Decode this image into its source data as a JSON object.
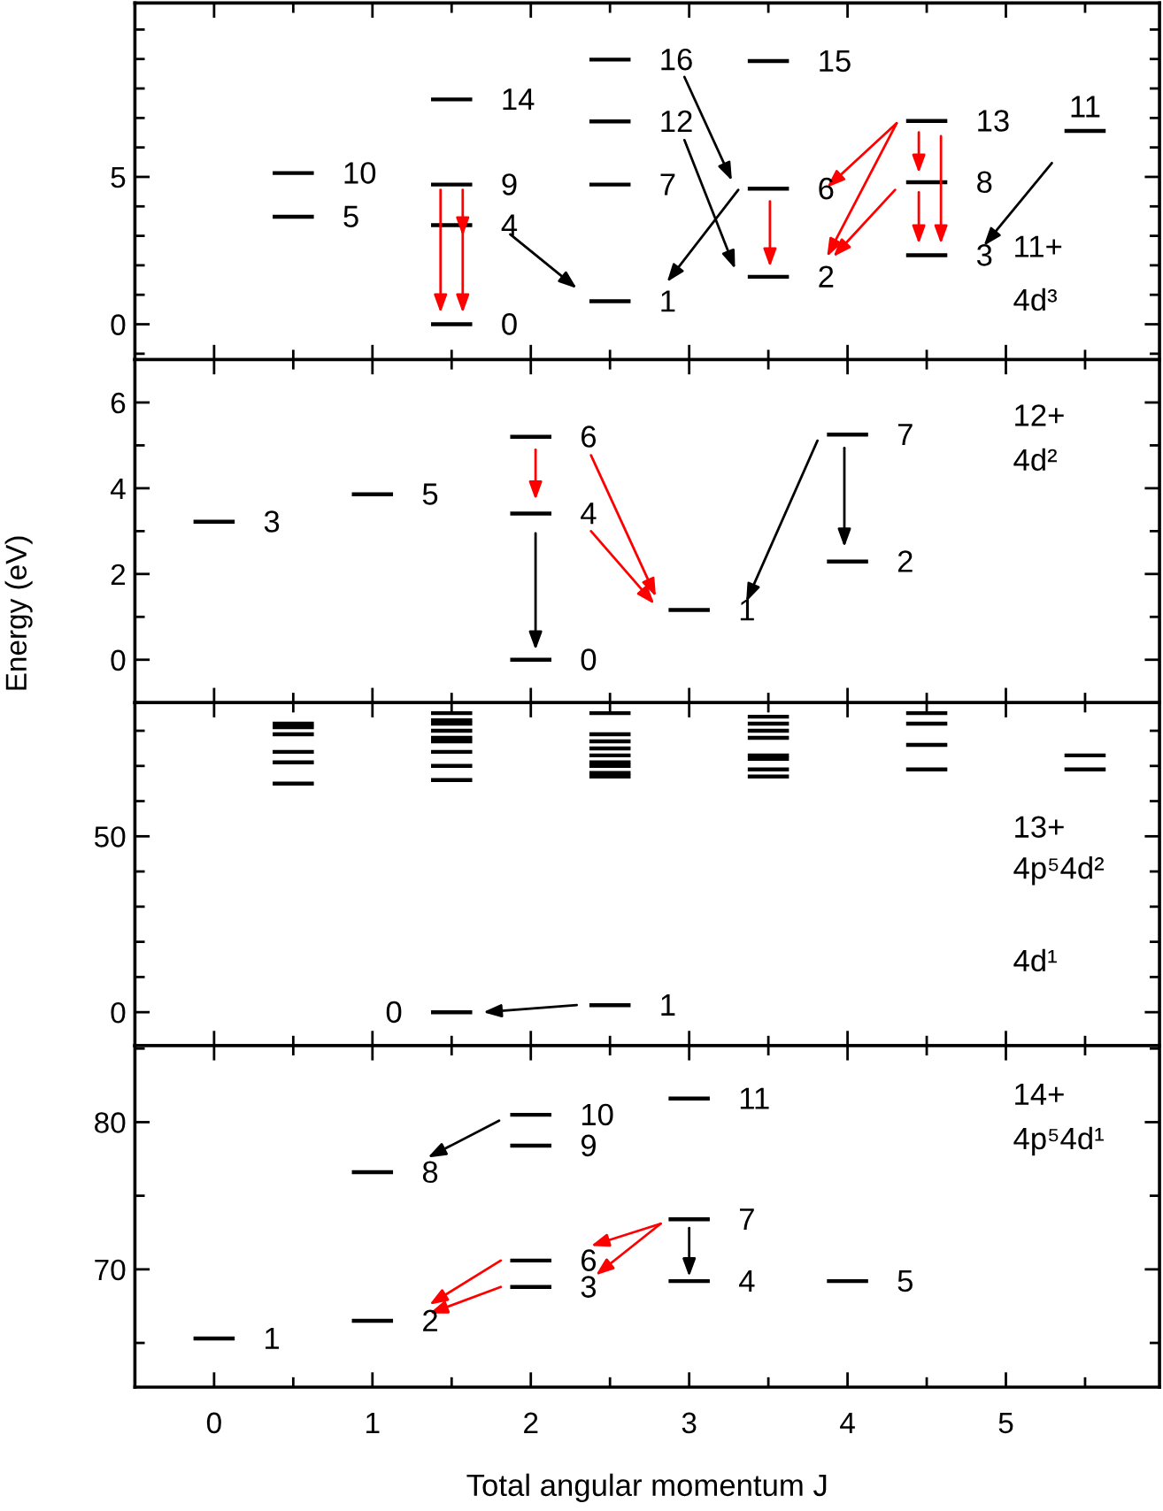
{
  "chart_data": [
    {
      "type": "line",
      "xlim": [
        -0.5,
        5.97
      ],
      "xticks": [
        0,
        1,
        2,
        3,
        4,
        5
      ],
      "ylim": [
        -1.2,
        10.9
      ],
      "yticks": [
        0,
        5
      ],
      "tick_labels": "y",
      "series": [
        {
          "color": "#000000",
          "x": [
            0.37,
            0.63
          ],
          "values": [
            5.13,
            5.13
          ]
        },
        {
          "color": "#000000",
          "x": [
            0.37,
            0.63
          ],
          "values": [
            3.65,
            3.65
          ]
        },
        {
          "color": "#000000",
          "x": [
            1.37,
            1.63
          ],
          "values": [
            7.63,
            7.63
          ]
        },
        {
          "color": "#000000",
          "x": [
            1.37,
            1.63
          ],
          "values": [
            4.74,
            4.74
          ]
        },
        {
          "color": "#000000",
          "x": [
            1.37,
            1.63
          ],
          "values": [
            3.36,
            3.36
          ]
        },
        {
          "color": "#000000",
          "x": [
            1.37,
            1.63
          ],
          "values": [
            0,
            0
          ]
        },
        {
          "color": "#000000",
          "x": [
            2.37,
            2.63
          ],
          "values": [
            8.98,
            8.98
          ]
        },
        {
          "color": "#000000",
          "x": [
            2.37,
            2.63
          ],
          "values": [
            6.88,
            6.88
          ]
        },
        {
          "color": "#000000",
          "x": [
            2.37,
            2.63
          ],
          "values": [
            4.74,
            4.74
          ]
        },
        {
          "color": "#000000",
          "x": [
            2.37,
            2.63
          ],
          "values": [
            0.78,
            0.78
          ]
        },
        {
          "color": "#000000",
          "x": [
            3.37,
            3.63
          ],
          "values": [
            8.93,
            8.93
          ]
        },
        {
          "color": "#000000",
          "x": [
            3.37,
            3.63
          ],
          "values": [
            4.6,
            4.6
          ]
        },
        {
          "color": "#000000",
          "x": [
            3.37,
            3.63
          ],
          "values": [
            1.61,
            1.61
          ]
        },
        {
          "color": "#000000",
          "x": [
            4.37,
            4.63
          ],
          "values": [
            6.9,
            6.9
          ]
        },
        {
          "color": "#000000",
          "x": [
            4.37,
            4.63
          ],
          "values": [
            4.82,
            4.82
          ]
        },
        {
          "color": "#000000",
          "x": [
            4.37,
            4.63
          ],
          "values": [
            2.34,
            2.34
          ]
        },
        {
          "color": "#000000",
          "x": [
            5.37,
            5.63
          ],
          "values": [
            6.56,
            6.56
          ]
        }
      ],
      "annotations": [
        {
          "text": "10",
          "x": 0.5,
          "y": 5.13
        },
        {
          "text": "5",
          "x": 0.5,
          "y": 3.65
        },
        {
          "text": "14",
          "x": 1.5,
          "y": 7.63
        },
        {
          "text": "9",
          "x": 1.5,
          "y": 4.74
        },
        {
          "text": "4",
          "x": 1.5,
          "y": 3.36
        },
        {
          "text": "0",
          "x": 1.5,
          "y": 0
        },
        {
          "text": "16",
          "x": 2.5,
          "y": 8.98
        },
        {
          "text": "12",
          "x": 2.5,
          "y": 6.88
        },
        {
          "text": "7",
          "x": 2.5,
          "y": 4.74
        },
        {
          "text": "1",
          "x": 2.5,
          "y": 0.78
        },
        {
          "text": "15",
          "x": 3.5,
          "y": 8.93
        },
        {
          "text": "6",
          "x": 3.5,
          "y": 4.6
        },
        {
          "text": "2",
          "x": 3.5,
          "y": 1.61
        },
        {
          "text": "13",
          "x": 4.5,
          "y": 6.9
        },
        {
          "text": "8",
          "x": 4.5,
          "y": 4.82
        },
        {
          "text": "3",
          "x": 4.5,
          "y": 2.34
        },
        {
          "text": "11",
          "x": 5.5,
          "y": 6.56
        },
        "11+",
        "4d³"
      ]
    },
    {
      "type": "line",
      "xlim": [
        -0.5,
        5.97
      ],
      "xticks": [
        0,
        1,
        2,
        3,
        4,
        5
      ],
      "ylim": [
        -1,
        7
      ],
      "yticks": [
        0,
        2,
        4,
        6
      ],
      "tick_labels": "y",
      "ylabel": "Energy (eV)",
      "series": [
        {
          "color": "#000000",
          "x": [
            -0.13,
            0.13
          ],
          "values": [
            3.22,
            3.22
          ]
        },
        {
          "color": "#000000",
          "x": [
            0.87,
            1.13
          ],
          "values": [
            3.86,
            3.86
          ]
        },
        {
          "color": "#000000",
          "x": [
            1.87,
            2.13
          ],
          "values": [
            5.2,
            5.2
          ]
        },
        {
          "color": "#000000",
          "x": [
            1.87,
            2.13
          ],
          "values": [
            3.41,
            3.41
          ]
        },
        {
          "color": "#000000",
          "x": [
            1.87,
            2.13
          ],
          "values": [
            0,
            0
          ]
        },
        {
          "color": "#000000",
          "x": [
            2.87,
            3.13
          ],
          "values": [
            1.16,
            1.16
          ]
        },
        {
          "color": "#000000",
          "x": [
            3.87,
            4.13
          ],
          "values": [
            5.25,
            5.25
          ]
        },
        {
          "color": "#000000",
          "x": [
            3.87,
            4.13
          ],
          "values": [
            2.29,
            2.29
          ]
        }
      ],
      "annotations": [
        {
          "text": "3",
          "x": 0,
          "y": 3.22
        },
        {
          "text": "5",
          "x": 1,
          "y": 3.86
        },
        {
          "text": "6",
          "x": 2,
          "y": 5.2
        },
        {
          "text": "4",
          "x": 2,
          "y": 3.41
        },
        {
          "text": "0",
          "x": 2,
          "y": 0
        },
        {
          "text": "1",
          "x": 3,
          "y": 1.16
        },
        {
          "text": "7",
          "x": 4,
          "y": 5.25
        },
        {
          "text": "2",
          "x": 4,
          "y": 2.29
        },
        "12+",
        "4d²"
      ]
    },
    {
      "type": "line",
      "xlim": [
        -0.5,
        5.97
      ],
      "xticks": [
        0,
        1,
        2,
        3,
        4,
        5
      ],
      "ylim": [
        -9.5,
        88
      ],
      "yticks": [
        0,
        50
      ],
      "tick_labels": "y",
      "series": [
        {
          "color": "#000000",
          "x": [
            1.37,
            1.63
          ],
          "values": [
            0,
            0
          ]
        },
        {
          "color": "#000000",
          "x": [
            2.37,
            2.63
          ],
          "values": [
            2,
            2
          ]
        },
        {
          "color": "#000000",
          "x": [
            0.37,
            0.63
          ],
          "values": [
            82,
            82
          ]
        },
        {
          "color": "#000000",
          "x": [
            0.37,
            0.63
          ],
          "values": [
            81,
            81
          ]
        },
        {
          "color": "#000000",
          "x": [
            0.37,
            0.63
          ],
          "values": [
            79,
            79
          ]
        },
        {
          "color": "#000000",
          "x": [
            0.37,
            0.63
          ],
          "values": [
            74,
            74
          ]
        },
        {
          "color": "#000000",
          "x": [
            0.37,
            0.63
          ],
          "values": [
            71,
            71
          ]
        },
        {
          "color": "#000000",
          "x": [
            0.37,
            0.63
          ],
          "values": [
            65,
            65
          ]
        },
        {
          "color": "#000000",
          "x": [
            1.37,
            1.63
          ],
          "values": [
            85,
            85
          ]
        },
        {
          "color": "#000000",
          "x": [
            1.37,
            1.63
          ],
          "values": [
            83,
            83
          ]
        },
        {
          "color": "#000000",
          "x": [
            1.37,
            1.63
          ],
          "values": [
            82,
            82
          ]
        },
        {
          "color": "#000000",
          "x": [
            1.37,
            1.63
          ],
          "values": [
            80,
            80
          ]
        },
        {
          "color": "#000000",
          "x": [
            1.37,
            1.63
          ],
          "values": [
            78,
            78
          ]
        },
        {
          "color": "#000000",
          "x": [
            1.37,
            1.63
          ],
          "values": [
            77,
            77
          ]
        },
        {
          "color": "#000000",
          "x": [
            1.37,
            1.63
          ],
          "values": [
            74,
            74
          ]
        },
        {
          "color": "#000000",
          "x": [
            1.37,
            1.63
          ],
          "values": [
            70,
            70
          ]
        },
        {
          "color": "#000000",
          "x": [
            1.37,
            1.63
          ],
          "values": [
            66,
            66
          ]
        },
        {
          "color": "#000000",
          "x": [
            2.37,
            2.63
          ],
          "values": [
            85,
            85
          ]
        },
        {
          "color": "#000000",
          "x": [
            2.37,
            2.63
          ],
          "values": [
            79,
            79
          ]
        },
        {
          "color": "#000000",
          "x": [
            2.37,
            2.63
          ],
          "values": [
            77,
            77
          ]
        },
        {
          "color": "#000000",
          "x": [
            2.37,
            2.63
          ],
          "values": [
            75,
            75
          ]
        },
        {
          "color": "#000000",
          "x": [
            2.37,
            2.63
          ],
          "values": [
            73,
            73
          ]
        },
        {
          "color": "#000000",
          "x": [
            2.37,
            2.63
          ],
          "values": [
            71,
            71
          ]
        },
        {
          "color": "#000000",
          "x": [
            2.37,
            2.63
          ],
          "values": [
            70,
            70
          ]
        },
        {
          "color": "#000000",
          "x": [
            2.37,
            2.63
          ],
          "values": [
            68,
            68
          ]
        },
        {
          "color": "#000000",
          "x": [
            2.37,
            2.63
          ],
          "values": [
            67,
            67
          ]
        },
        {
          "color": "#000000",
          "x": [
            3.37,
            3.63
          ],
          "values": [
            84,
            84
          ]
        },
        {
          "color": "#000000",
          "x": [
            3.37,
            3.63
          ],
          "values": [
            82,
            82
          ]
        },
        {
          "color": "#000000",
          "x": [
            3.37,
            3.63
          ],
          "values": [
            80,
            80
          ]
        },
        {
          "color": "#000000",
          "x": [
            3.37,
            3.63
          ],
          "values": [
            78,
            78
          ]
        },
        {
          "color": "#000000",
          "x": [
            3.37,
            3.63
          ],
          "values": [
            73,
            73
          ]
        },
        {
          "color": "#000000",
          "x": [
            3.37,
            3.63
          ],
          "values": [
            72,
            72
          ]
        },
        {
          "color": "#000000",
          "x": [
            3.37,
            3.63
          ],
          "values": [
            69,
            69
          ]
        },
        {
          "color": "#000000",
          "x": [
            3.37,
            3.63
          ],
          "values": [
            67,
            67
          ]
        },
        {
          "color": "#000000",
          "x": [
            4.37,
            4.63
          ],
          "values": [
            85,
            85
          ]
        },
        {
          "color": "#000000",
          "x": [
            4.37,
            4.63
          ],
          "values": [
            82,
            82
          ]
        },
        {
          "color": "#000000",
          "x": [
            4.37,
            4.63
          ],
          "values": [
            76,
            76
          ]
        },
        {
          "color": "#000000",
          "x": [
            4.37,
            4.63
          ],
          "values": [
            69,
            69
          ]
        },
        {
          "color": "#000000",
          "x": [
            5.37,
            5.63
          ],
          "values": [
            73,
            73
          ]
        },
        {
          "color": "#000000",
          "x": [
            5.37,
            5.63
          ],
          "values": [
            69,
            69
          ]
        }
      ],
      "annotations": [
        {
          "text": "0",
          "x": 1.5,
          "y": 0
        },
        {
          "text": "1",
          "x": 2.5,
          "y": 2
        },
        "13+",
        "4p⁵4d²",
        "4d¹"
      ]
    },
    {
      "type": "line",
      "xlim": [
        -0.5,
        5.97
      ],
      "xticks": [
        0,
        1,
        2,
        3,
        4,
        5
      ],
      "ylim": [
        62,
        85.2
      ],
      "yticks": [
        70,
        80
      ],
      "xlabel": "Total angular momentum J",
      "series": [
        {
          "color": "#000000",
          "x": [
            -0.13,
            0.13
          ],
          "values": [
            65.3,
            65.3
          ]
        },
        {
          "color": "#000000",
          "x": [
            0.87,
            1.13
          ],
          "values": [
            66.5,
            66.5
          ]
        },
        {
          "color": "#000000",
          "x": [
            0.87,
            1.13
          ],
          "values": [
            76.6,
            76.6
          ]
        },
        {
          "color": "#000000",
          "x": [
            1.87,
            2.13
          ],
          "values": [
            80.5,
            80.5
          ]
        },
        {
          "color": "#000000",
          "x": [
            1.87,
            2.13
          ],
          "values": [
            78.4,
            78.4
          ]
        },
        {
          "color": "#000000",
          "x": [
            1.87,
            2.13
          ],
          "values": [
            70.6,
            70.6
          ]
        },
        {
          "color": "#000000",
          "x": [
            1.87,
            2.13
          ],
          "values": [
            68.8,
            68.8
          ]
        },
        {
          "color": "#000000",
          "x": [
            2.87,
            3.13
          ],
          "values": [
            81.6,
            81.6
          ]
        },
        {
          "color": "#000000",
          "x": [
            2.87,
            3.13
          ],
          "values": [
            73.4,
            73.4
          ]
        },
        {
          "color": "#000000",
          "x": [
            2.87,
            3.13
          ],
          "values": [
            69.2,
            69.2
          ]
        },
        {
          "color": "#000000",
          "x": [
            3.87,
            4.13
          ],
          "values": [
            69.2,
            69.2
          ]
        }
      ],
      "annotations": [
        {
          "text": "1",
          "x": 0,
          "y": 65.3
        },
        {
          "text": "2",
          "x": 1,
          "y": 66.5
        },
        {
          "text": "8",
          "x": 1,
          "y": 76.6
        },
        {
          "text": "10",
          "x": 2,
          "y": 80.5
        },
        {
          "text": "9",
          "x": 2,
          "y": 78.4
        },
        {
          "text": "6",
          "x": 2,
          "y": 70.6
        },
        {
          "text": "3",
          "x": 2,
          "y": 68.8
        },
        {
          "text": "11",
          "x": 3,
          "y": 81.6
        },
        {
          "text": "7",
          "x": 3,
          "y": 73.4
        },
        {
          "text": "4",
          "x": 3,
          "y": 69.2
        },
        {
          "text": "5",
          "x": 4,
          "y": 69.2
        },
        "14+",
        "4p⁵4d¹"
      ]
    }
  ]
}
